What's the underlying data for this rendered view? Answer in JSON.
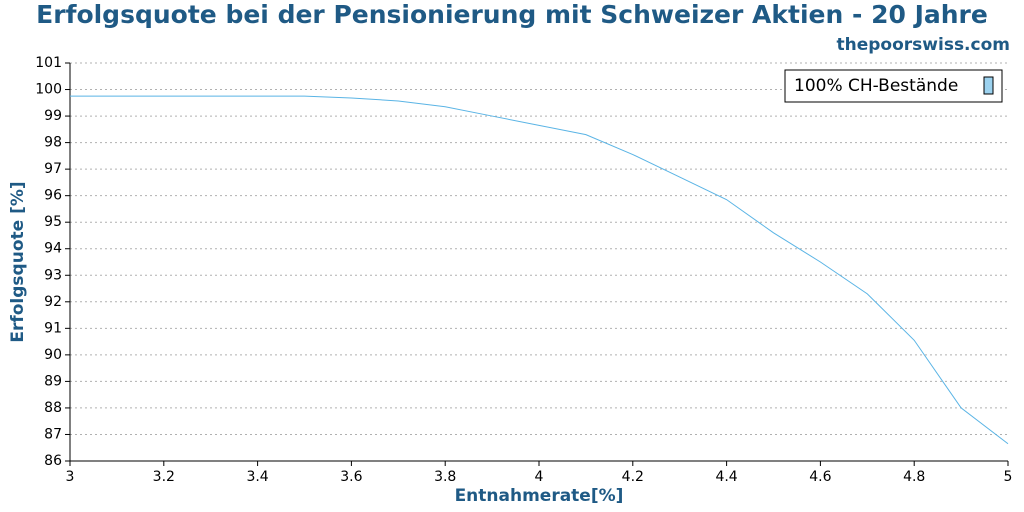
{
  "chart_data": {
    "type": "line",
    "title": "Erfolgsquote bei der Pensionierung mit Schweizer Aktien - 20 Jahre",
    "subtitle": "thepoorswiss.com",
    "x_label": "Entnahmerate[%]",
    "y_label": "Erfolgsquote [%]",
    "x": [
      3,
      3.1,
      3.2,
      3.3,
      3.4,
      3.5,
      3.6,
      3.7,
      3.8,
      3.9,
      4,
      4.1,
      4.2,
      4.3,
      4.4,
      4.5,
      4.6,
      4.7,
      4.8,
      4.9,
      5
    ],
    "series": [
      {
        "name": "100% CH-Bestände",
        "color": "#5ab4e5",
        "values": [
          99.75,
          99.75,
          99.75,
          99.75,
          99.75,
          99.75,
          99.68,
          99.57,
          99.35,
          99.0,
          98.65,
          98.3,
          97.55,
          96.7,
          95.85,
          94.6,
          93.5,
          92.3,
          90.55,
          88.0,
          86.65
        ]
      }
    ],
    "xlim": [
      3,
      5
    ],
    "xticks": [
      3,
      3.2,
      3.4,
      3.6,
      3.8,
      4,
      4.2,
      4.4,
      4.6,
      4.8,
      5
    ],
    "ylim": [
      86,
      101
    ],
    "yticks": [
      86,
      87,
      88,
      89,
      90,
      91,
      92,
      93,
      94,
      95,
      96,
      97,
      98,
      99,
      100,
      101
    ],
    "grid": true,
    "legend": "top-right"
  }
}
